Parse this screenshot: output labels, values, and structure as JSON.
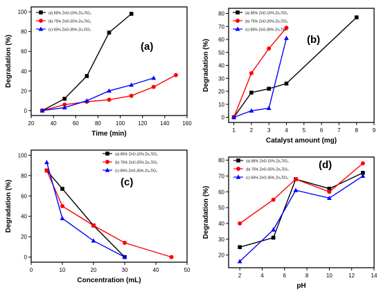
{
  "colors": {
    "black": "#000000",
    "red": "#ff0000",
    "blue": "#0000ff",
    "frame": "#000000"
  },
  "chart_data": [
    {
      "type": "line",
      "panel_label": "(a)",
      "xlabel": "Time (min)",
      "ylabel": "Degradation (%)",
      "xlim": [
        20,
        160
      ],
      "ylim": [
        -5,
        105
      ],
      "xticks": [
        20,
        40,
        60,
        80,
        100,
        120,
        140,
        160
      ],
      "yticks": [
        0,
        20,
        40,
        60,
        80,
        100
      ],
      "legend_position": "top-left",
      "series": [
        {
          "name": "(a) 85% ZnO-15% Zn₂TiO₄",
          "color": "#000000",
          "marker": "square",
          "x": [
            30,
            50,
            70,
            90,
            110
          ],
          "y": [
            0,
            12,
            35,
            79,
            98
          ]
        },
        {
          "name": "(b) 75% ZnO-25% Zn₂TiO₄",
          "color": "#ff0000",
          "marker": "circle",
          "x": [
            30,
            50,
            70,
            90,
            110,
            130,
            150
          ],
          "y": [
            0,
            6,
            9,
            11,
            15,
            24,
            36
          ]
        },
        {
          "name": "(c) 65% ZnO-35% Zn₂TiO₄",
          "color": "#0000ff",
          "marker": "triangle",
          "x": [
            30,
            50,
            70,
            90,
            110,
            130
          ],
          "y": [
            0,
            3,
            10,
            20,
            26,
            33
          ]
        }
      ]
    },
    {
      "type": "line",
      "panel_label": "(b)",
      "xlabel": "Catalyst amount (mg)",
      "ylabel": "Degradation (%)",
      "xlim": [
        0.7,
        9
      ],
      "ylim": [
        -4,
        84
      ],
      "xticks": [
        1,
        2,
        3,
        4,
        5,
        6,
        7,
        8,
        9
      ],
      "yticks": [
        0,
        10,
        20,
        30,
        40,
        50,
        60,
        70,
        80
      ],
      "legend_position": "top-left",
      "series": [
        {
          "name": "(a) 85% ZnO-15% Zn₂TiO₄",
          "color": "#000000",
          "marker": "square",
          "x": [
            1,
            2,
            3,
            4,
            8
          ],
          "y": [
            0,
            19,
            22,
            26,
            77
          ]
        },
        {
          "name": "(b) 75% ZnO-25% Zn₂TiO₄",
          "color": "#ff0000",
          "marker": "circle",
          "x": [
            1,
            2,
            3,
            4
          ],
          "y": [
            0,
            34,
            53,
            69
          ]
        },
        {
          "name": "(c) 65% ZnO-35% Zn₂TiO₄",
          "color": "#0000ff",
          "marker": "triangle",
          "x": [
            1,
            2,
            3,
            4
          ],
          "y": [
            0,
            5,
            7,
            61
          ]
        }
      ]
    },
    {
      "type": "line",
      "panel_label": "(c)",
      "xlabel": "Concentration (mL)",
      "ylabel": "Degradation (%)",
      "xlim": [
        0,
        50
      ],
      "ylim": [
        -5,
        105
      ],
      "xticks": [
        0,
        10,
        20,
        30,
        40,
        50
      ],
      "yticks": [
        0,
        20,
        40,
        60,
        80,
        100
      ],
      "legend_position": "top-right",
      "series": [
        {
          "name": "(a) 85% ZnO-15% Zn₂TiO₄",
          "color": "#000000",
          "marker": "square",
          "x": [
            5,
            10,
            20,
            30
          ],
          "y": [
            85,
            67,
            31,
            0
          ]
        },
        {
          "name": "(b) 75% ZnO-25% Zn₂TiO₄",
          "color": "#ff0000",
          "marker": "circle",
          "x": [
            5,
            10,
            20,
            30,
            45
          ],
          "y": [
            85,
            50,
            31,
            14,
            0
          ]
        },
        {
          "name": "(c) 65% ZnO-35% Zn₂TiO₄",
          "color": "#0000ff",
          "marker": "triangle",
          "x": [
            5,
            10,
            20,
            30
          ],
          "y": [
            93,
            38,
            16,
            0
          ]
        }
      ]
    },
    {
      "type": "line",
      "panel_label": "(d)",
      "xlabel": "pH",
      "ylabel": "Degradation (%)",
      "xlim": [
        1,
        14
      ],
      "ylim": [
        12,
        82
      ],
      "xticks": [
        2,
        4,
        6,
        8,
        10,
        12,
        14
      ],
      "yticks": [
        20,
        30,
        40,
        50,
        60,
        70,
        80
      ],
      "legend_position": "top-left",
      "series": [
        {
          "name": "(a) 85% ZnO-15% Zn₂TiO₄",
          "color": "#000000",
          "marker": "square",
          "x": [
            2,
            5,
            7,
            10,
            13
          ],
          "y": [
            25,
            31,
            68,
            62,
            72
          ]
        },
        {
          "name": "(b) 75% ZnO-25% Zn₂TiO₄",
          "color": "#ff0000",
          "marker": "circle",
          "x": [
            2,
            5,
            7,
            10,
            13
          ],
          "y": [
            40,
            55,
            68,
            60,
            78
          ]
        },
        {
          "name": "(c) 65% ZnO-35% Zn₂TiO₄",
          "color": "#0000ff",
          "marker": "triangle",
          "x": [
            2,
            5,
            7,
            10,
            13
          ],
          "y": [
            16,
            36,
            61,
            56,
            70
          ]
        }
      ]
    }
  ]
}
